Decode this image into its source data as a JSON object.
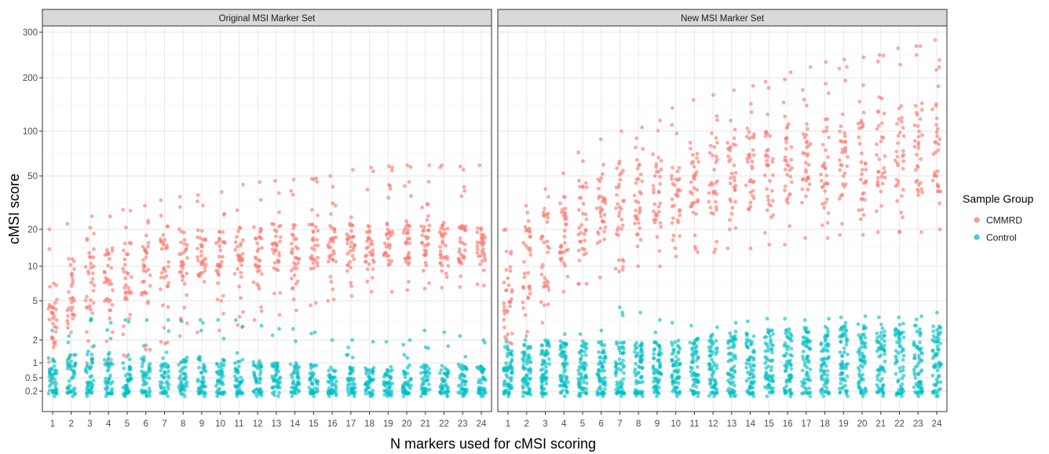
{
  "chart_data": {
    "type": "scatter",
    "title": "",
    "xlabel": "N markers used for cMSI scoring",
    "ylabel": "cMSI score",
    "y_scale": "transformed (compressed near zero, log-like above 1)",
    "y_ticks": [
      0.2,
      0.5,
      1,
      2,
      5,
      10,
      20,
      50,
      100,
      200,
      300
    ],
    "y_tick_labels": [
      "0.2",
      "0.5",
      "1",
      "2",
      "5",
      "10",
      "20",
      "50",
      "100",
      "200",
      "300"
    ],
    "ylim": [
      0.1,
      330
    ],
    "x_ticks": [
      1,
      2,
      3,
      4,
      5,
      6,
      7,
      8,
      9,
      10,
      11,
      12,
      13,
      14,
      15,
      16,
      17,
      18,
      19,
      20,
      21,
      22,
      23,
      24
    ],
    "x_tick_labels": [
      "1",
      "2",
      "3",
      "4",
      "5",
      "6",
      "7",
      "8",
      "9",
      "10",
      "11",
      "12",
      "13",
      "14",
      "15",
      "16",
      "17",
      "18",
      "19",
      "20",
      "21",
      "22",
      "23",
      "24"
    ],
    "grid": true,
    "legend": {
      "title": "Sample Group",
      "position": "right",
      "entries": [
        "CMMRD",
        "Control"
      ]
    },
    "colors": {
      "CMMRD": "#F8766D",
      "Control": "#00BFC4"
    },
    "panels": [
      {
        "title": "Original MSI Marker Set",
        "series": [
          {
            "name": "CMMRD",
            "summary_by_x": {
              "x": [
                1,
                2,
                3,
                4,
                5,
                6,
                7,
                8,
                9,
                10,
                11,
                12,
                13,
                14,
                15,
                16,
                17,
                18,
                19,
                20,
                21,
                22,
                23,
                24
              ],
              "min": [
                0.4,
                0.9,
                1.0,
                1.1,
                1.2,
                1.5,
                1.8,
                2.2,
                2.4,
                2.5,
                2.7,
                3.2,
                3.6,
                4.0,
                4.5,
                5.0,
                5.5,
                6.0,
                6.0,
                6.2,
                6.4,
                6.5,
                6.6,
                6.8
              ],
              "max": [
                20,
                22,
                25,
                25,
                28,
                30,
                33,
                35,
                36,
                38,
                43,
                45,
                46,
                47,
                48,
                50,
                55,
                57,
                58,
                59,
                59,
                59,
                58,
                59
              ],
              "typical_range": [
                [
                  1.5,
                  8
                ],
                [
                  2.5,
                  12
                ],
                [
                  3.5,
                  14
                ],
                [
                  4,
                  16
                ],
                [
                  5,
                  18
                ],
                [
                  5.5,
                  18
                ],
                [
                  6,
                  18
                ],
                [
                  7,
                  20
                ],
                [
                  7.5,
                  20
                ],
                [
                  8,
                  20
                ],
                [
                  8,
                  21
                ],
                [
                  8.5,
                  21
                ],
                [
                  9,
                  22
                ],
                [
                  9,
                  22
                ],
                [
                  9.5,
                  22
                ],
                [
                  10,
                  22
                ],
                [
                  10,
                  22
                ],
                [
                  10,
                  22
                ],
                [
                  10,
                  22
                ],
                [
                  10,
                  22
                ],
                [
                  10,
                  22
                ],
                [
                  10,
                  22
                ],
                [
                  10,
                  22
                ],
                [
                  10,
                  22
                ]
              ]
            }
          },
          {
            "name": "Control",
            "summary_by_x": {
              "x": [
                1,
                2,
                3,
                4,
                5,
                6,
                7,
                8,
                9,
                10,
                11,
                12,
                13,
                14,
                15,
                16,
                17,
                18,
                19,
                20,
                21,
                22,
                23,
                24
              ],
              "min": [
                0.1,
                0.1,
                0.1,
                0.1,
                0.1,
                0.1,
                0.1,
                0.1,
                0.1,
                0.1,
                0.1,
                0.1,
                0.1,
                0.1,
                0.1,
                0.1,
                0.1,
                0.1,
                0.1,
                0.1,
                0.1,
                0.1,
                0.1,
                0.1
              ],
              "max": [
                2.5,
                2.2,
                3.3,
                3.0,
                3.2,
                3.2,
                3.2,
                3.1,
                3.2,
                3.2,
                3.2,
                2.8,
                2.6,
                2.6,
                2.4,
                2.0,
                2.0,
                1.9,
                1.9,
                2.0,
                2.5,
                2.4,
                2.2,
                2.0
              ],
              "typical_range": [
                [
                  0.15,
                  1.2
                ],
                [
                  0.15,
                  1.3
                ],
                [
                  0.15,
                  1.3
                ],
                [
                  0.15,
                  1.3
                ],
                [
                  0.15,
                  1.3
                ],
                [
                  0.15,
                  1.2
                ],
                [
                  0.15,
                  1.2
                ],
                [
                  0.15,
                  1.2
                ],
                [
                  0.15,
                  1.2
                ],
                [
                  0.15,
                  1.2
                ],
                [
                  0.15,
                  1.2
                ],
                [
                  0.15,
                  1.1
                ],
                [
                  0.15,
                  1.0
                ],
                [
                  0.15,
                  1.0
                ],
                [
                  0.15,
                  1.0
                ],
                [
                  0.15,
                  0.9
                ],
                [
                  0.15,
                  0.9
                ],
                [
                  0.15,
                  0.9
                ],
                [
                  0.15,
                  0.9
                ],
                [
                  0.15,
                  0.9
                ],
                [
                  0.15,
                  0.9
                ],
                [
                  0.15,
                  0.9
                ],
                [
                  0.15,
                  0.9
                ],
                [
                  0.15,
                  0.9
                ]
              ]
            }
          }
        ]
      },
      {
        "title": "New MSI Marker Set",
        "series": [
          {
            "name": "CMMRD",
            "summary_by_x": {
              "x": [
                1,
                2,
                3,
                4,
                5,
                6,
                7,
                8,
                9,
                10,
                11,
                12,
                13,
                14,
                15,
                16,
                17,
                18,
                19,
                20,
                21,
                22,
                23,
                24
              ],
              "min": [
                1.8,
                2.2,
                3.0,
                6.0,
                7.0,
                8.0,
                9.0,
                10,
                10,
                12,
                13,
                13,
                14,
                14,
                15,
                15,
                17,
                17,
                18,
                18,
                19,
                19,
                19,
                20
              ],
              "max": [
                20,
                30,
                40,
                52,
                72,
                88,
                100,
                105,
                115,
                135,
                150,
                160,
                170,
                180,
                190,
                210,
                220,
                230,
                235,
                240,
                245,
                260,
                265,
                280
              ],
              "typical_range": [
                [
                  2,
                  12
                ],
                [
                  4,
                  22
                ],
                [
                  6,
                  28
                ],
                [
                  10,
                  35
                ],
                [
                  12,
                  45
                ],
                [
                  14,
                  50
                ],
                [
                  16,
                  60
                ],
                [
                  18,
                  65
                ],
                [
                  20,
                  70
                ],
                [
                  22,
                  80
                ],
                [
                  24,
                  85
                ],
                [
                  25,
                  90
                ],
                [
                  26,
                  95
                ],
                [
                  27,
                  100
                ],
                [
                  28,
                  105
                ],
                [
                  30,
                  110
                ],
                [
                  30,
                  115
                ],
                [
                  30,
                  120
                ],
                [
                  32,
                  125
                ],
                [
                  32,
                  130
                ],
                [
                  33,
                  135
                ],
                [
                  34,
                  140
                ],
                [
                  35,
                  145
                ],
                [
                  36,
                  150
                ]
              ]
            }
          },
          {
            "name": "Control",
            "summary_by_x": {
              "x": [
                1,
                2,
                3,
                4,
                5,
                6,
                7,
                8,
                9,
                10,
                11,
                12,
                13,
                14,
                15,
                16,
                17,
                18,
                19,
                20,
                21,
                22,
                23,
                24
              ],
              "min": [
                0.1,
                0.1,
                0.1,
                0.1,
                0.1,
                0.1,
                0.1,
                0.1,
                0.1,
                0.1,
                0.1,
                0.1,
                0.1,
                0.1,
                0.1,
                0.1,
                0.1,
                0.1,
                0.1,
                0.1,
                0.1,
                0.1,
                0.1,
                0.1
              ],
              "max": [
                1.9,
                2.0,
                2.0,
                2.3,
                2.3,
                2.5,
                4.3,
                3.8,
                3.2,
                3.0,
                2.8,
                2.7,
                3.0,
                3.1,
                3.3,
                3.3,
                3.2,
                3.3,
                3.4,
                3.5,
                3.4,
                3.4,
                3.5,
                3.8
              ],
              "typical_range": [
                [
                  0.15,
                  1.8
                ],
                [
                  0.15,
                  1.9
                ],
                [
                  0.15,
                  1.9
                ],
                [
                  0.15,
                  1.9
                ],
                [
                  0.15,
                  1.9
                ],
                [
                  0.15,
                  1.9
                ],
                [
                  0.15,
                  1.9
                ],
                [
                  0.15,
                  1.9
                ],
                [
                  0.15,
                  1.9
                ],
                [
                  0.15,
                  2.0
                ],
                [
                  0.15,
                  2.2
                ],
                [
                  0.15,
                  2.3
                ],
                [
                  0.15,
                  2.4
                ],
                [
                  0.15,
                  2.5
                ],
                [
                  0.15,
                  2.6
                ],
                [
                  0.15,
                  2.7
                ],
                [
                  0.15,
                  2.7
                ],
                [
                  0.15,
                  2.8
                ],
                [
                  0.15,
                  2.8
                ],
                [
                  0.15,
                  2.9
                ],
                [
                  0.15,
                  2.9
                ],
                [
                  0.15,
                  3.0
                ],
                [
                  0.15,
                  3.0
                ],
                [
                  0.15,
                  3.0
                ]
              ]
            }
          }
        ]
      }
    ]
  }
}
